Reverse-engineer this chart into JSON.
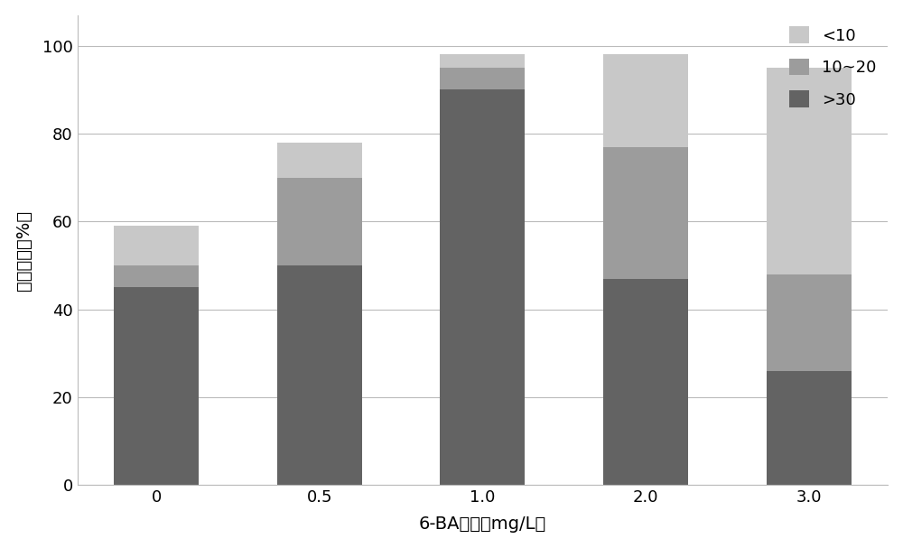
{
  "categories": [
    "0",
    "0.5",
    "1.0",
    "2.0",
    "3.0"
  ],
  "series": {
    ">30": [
      45,
      50,
      90,
      47,
      26
    ],
    "10~20": [
      5,
      20,
      5,
      30,
      22
    ],
    "<10": [
      9,
      8,
      3,
      21,
      47
    ]
  },
  "colors": {
    ">30": "#636363",
    "10~20": "#9c9c9c",
    "<10": "#c8c8c8"
  },
  "legend_order": [
    "<10",
    "10~20",
    ">30"
  ],
  "xlabel": "6-BA浓度（mg/L）",
  "ylabel": "产生比率（%）",
  "ylim": [
    0,
    107
  ],
  "yticks": [
    0,
    20,
    40,
    60,
    80,
    100
  ],
  "bar_width": 0.52,
  "background_color": "#ffffff",
  "label_fontsize": 14,
  "tick_fontsize": 13,
  "legend_fontsize": 13
}
